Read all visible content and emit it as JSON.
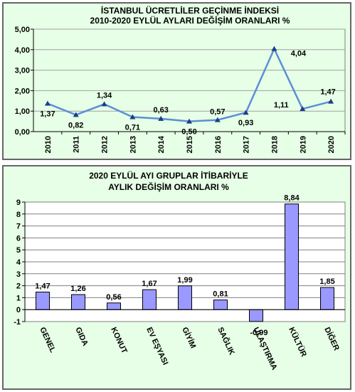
{
  "chart_data": [
    {
      "type": "line",
      "title": "İSTANBUL ÜCRETLİLER GEÇİNME İNDEKSİ",
      "subtitle": "2010-2020 EYLÜL AYLARI DEĞİŞİM ORANLARI %",
      "categories": [
        "2010",
        "2011",
        "2012",
        "2013",
        "2014",
        "2015",
        "2016",
        "2017",
        "2018",
        "2019",
        "2020"
      ],
      "values": [
        1.37,
        0.82,
        1.34,
        0.71,
        0.63,
        0.5,
        0.57,
        0.93,
        4.04,
        1.11,
        1.47
      ],
      "value_labels": [
        "1,37",
        "0,82",
        "1,34",
        "0,71",
        "0,63",
        "0,50",
        "0,57",
        "0,93",
        "4,04",
        "1,11",
        "1,47"
      ],
      "yticks": [
        "0,00",
        "1,00",
        "2,00",
        "3,00",
        "4,00",
        "5,00"
      ],
      "ylim": [
        0,
        5
      ],
      "grid": true,
      "colors": {
        "line": "#5b8fd6",
        "marker": "#1f3c88",
        "plot_bg": "#e6ffe6",
        "grid": "#a0a0a0"
      }
    },
    {
      "type": "bar",
      "title": "2020 EYLÜL AYI GRUPLAR İTİBARİYLE",
      "subtitle": "AYLIK DEĞİŞİM ORANLARI %",
      "categories": [
        "GENEL",
        "GIDA",
        "KONUT",
        "EV EŞYASI",
        "GİYİM",
        "SAĞLIK",
        "ULAŞTIRMA",
        "KÜLTÜR",
        "DİĞER"
      ],
      "values": [
        1.47,
        1.26,
        0.56,
        1.67,
        1.99,
        0.81,
        -0.99,
        8.84,
        1.85
      ],
      "value_labels": [
        "1,47",
        "1,26",
        "0,56",
        "1,67",
        "1,99",
        "0,81",
        "-0,99",
        "8,84",
        "1,85"
      ],
      "yticks": [
        "-1",
        "0",
        "1",
        "2",
        "3",
        "4",
        "5",
        "6",
        "7",
        "8",
        "9"
      ],
      "ylim": [
        -1,
        9
      ],
      "grid": true,
      "colors": {
        "bar": "#9999ff",
        "bar_edge": "#000000",
        "plot_bg": "#ffffff",
        "grid": "#808080"
      }
    }
  ]
}
